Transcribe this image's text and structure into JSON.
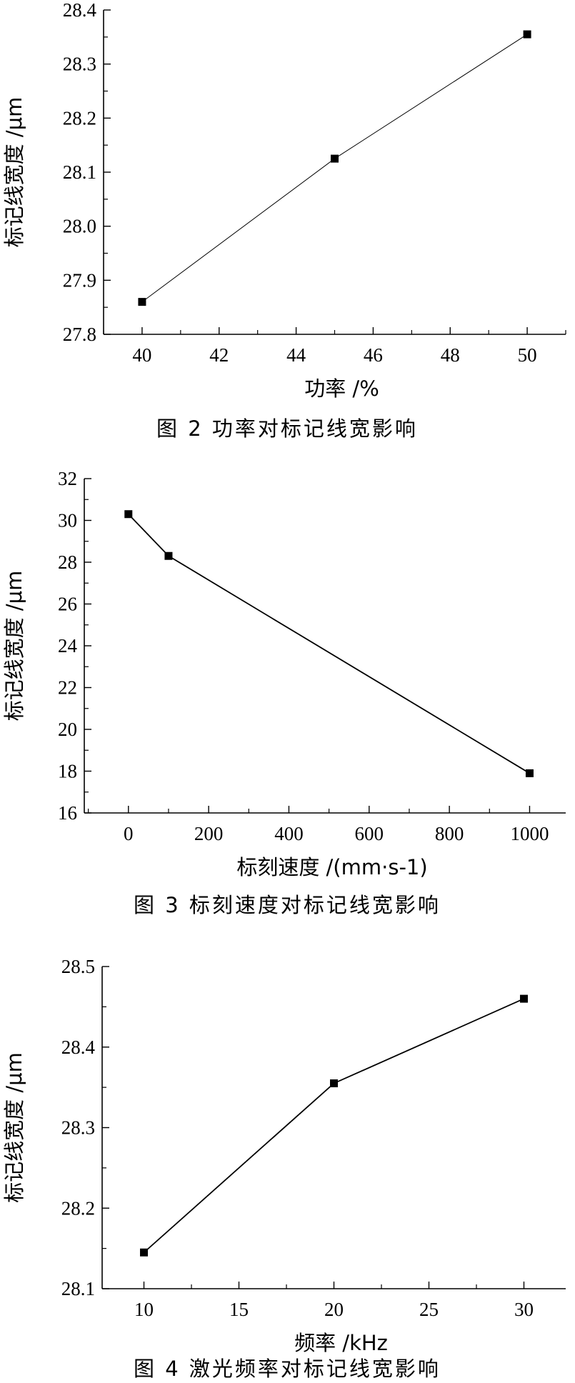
{
  "chart_data": [
    {
      "type": "line",
      "title": "",
      "caption": "图 2 功率对标记线宽影响",
      "xlabel": "功率 /%",
      "ylabel": "标记线宽度 /μm",
      "xlim": [
        39,
        51
      ],
      "ylim": [
        27.8,
        28.4
      ],
      "xticks": [
        "40",
        "42",
        "44",
        "46",
        "48",
        "50"
      ],
      "yticks": [
        "27.8",
        "27.9",
        "28.0",
        "28.1",
        "28.2",
        "28.3",
        "28.4"
      ],
      "grid": false,
      "series": [
        {
          "x": [
            40,
            45,
            50
          ],
          "y": [
            27.86,
            28.125,
            28.355
          ]
        }
      ]
    },
    {
      "type": "line",
      "title": "",
      "caption": "图 3 标刻速度对标记线宽影响",
      "xlabel": "标刻速度 /(mm·s-1)",
      "ylabel": "标记线宽度 /μm",
      "xlim": [
        -110,
        1090
      ],
      "ylim": [
        16,
        32
      ],
      "xticks": [
        "0",
        "200",
        "400",
        "600",
        "800",
        "1000"
      ],
      "yticks": [
        "16",
        "18",
        "20",
        "22",
        "24",
        "26",
        "28",
        "30",
        "32"
      ],
      "grid": false,
      "series": [
        {
          "x": [
            0,
            100,
            1000
          ],
          "y": [
            30.3,
            28.3,
            17.9
          ]
        }
      ]
    },
    {
      "type": "line",
      "title": "",
      "caption": "图 4 激光频率对标记线宽影响",
      "xlabel": "频率 /kHz",
      "ylabel": "标记线宽度 /μm",
      "xlim": [
        7.8,
        32.2
      ],
      "ylim": [
        28.1,
        28.5
      ],
      "xticks": [
        "10",
        "15",
        "20",
        "25",
        "30"
      ],
      "yticks": [
        "28.1",
        "28.2",
        "28.3",
        "28.4",
        "28.5"
      ],
      "grid": false,
      "series": [
        {
          "x": [
            10,
            20,
            30
          ],
          "y": [
            28.145,
            28.355,
            28.46
          ]
        }
      ]
    }
  ]
}
